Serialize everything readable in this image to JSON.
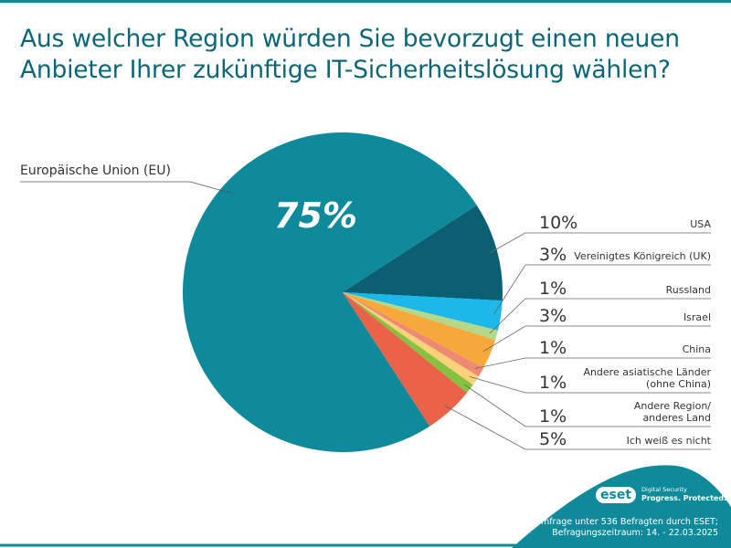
{
  "title": "Aus welcher Region würden Sie bevorzugt einen neuen Anbieter Ihrer zukünftige IT-Sicherheitslösung wählen?",
  "chart_data": {
    "type": "pie",
    "title": "Aus welcher Region würden Sie bevorzugt einen neuen Anbieter Ihrer zukünftige IT-Sicherheitslösung wählen?",
    "slices": [
      {
        "label": "Europäische Union (EU)",
        "value": 75,
        "display": "75%",
        "color": "#0e8a9a"
      },
      {
        "label": "USA",
        "value": 10,
        "display": "10%",
        "color": "#0b5f73"
      },
      {
        "label": "Vereinigtes Königreich (UK)",
        "value": 3,
        "display": "3%",
        "color": "#1cb8ea"
      },
      {
        "label": "Russland",
        "value": 1,
        "display": "1%",
        "color": "#b3d88a"
      },
      {
        "label": "Israel",
        "value": 3,
        "display": "3%",
        "color": "#f7a83a"
      },
      {
        "label": "China",
        "value": 1,
        "display": "1%",
        "color": "#ef8a72"
      },
      {
        "label": "Andere asiatische Länder (ohne China)",
        "value": 1,
        "display": "1%",
        "color": "#fdd07a"
      },
      {
        "label": "Andere Region/ anderes Land",
        "value": 1,
        "display": "1%",
        "color": "#86c23f"
      },
      {
        "label": "Ich weiß es nicht",
        "value": 5,
        "display": "5%",
        "color": "#ea6248"
      }
    ]
  },
  "footer": {
    "brand": "eset",
    "tagline_1": "Digital Security",
    "tagline_2": "Progress. Protected.",
    "note_1": "Umfrage unter 536 Befragten durch ESET;",
    "note_2": "Befragungszeitraum: 14. - 22.03.2025"
  },
  "colors": {
    "accent": "#0e8a9a",
    "title": "#0b6678"
  }
}
